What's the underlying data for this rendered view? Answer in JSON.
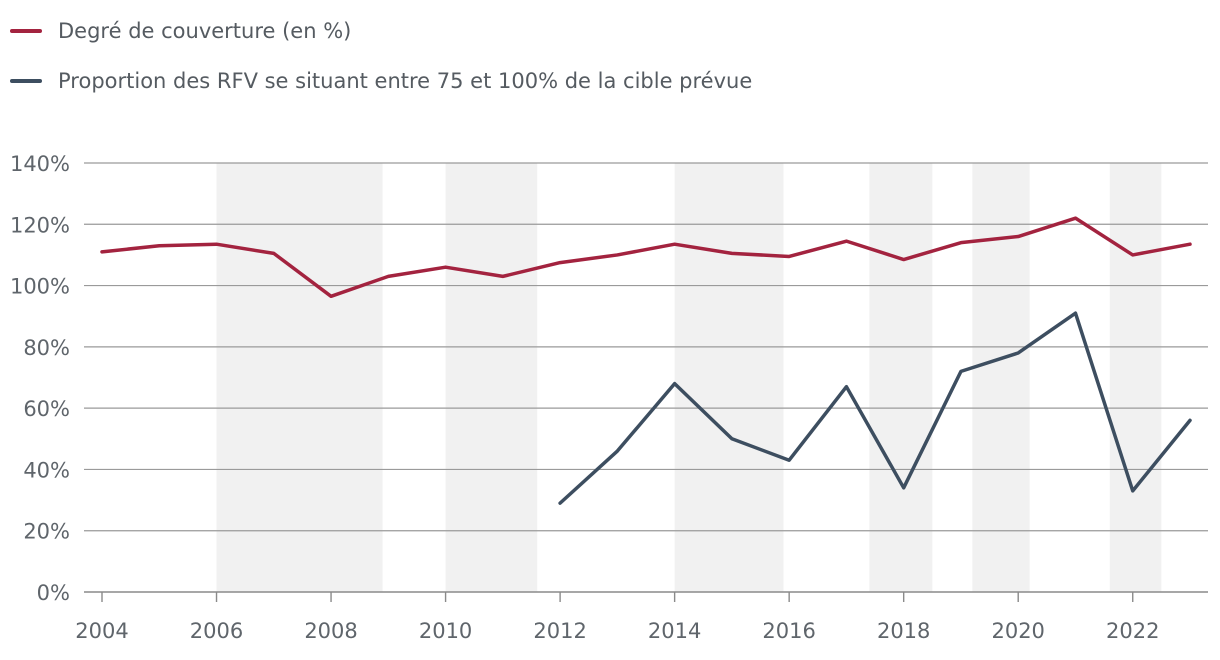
{
  "chart_data": {
    "type": "line",
    "title": "",
    "xlabel": "",
    "ylabel": "",
    "x": [
      2004,
      2005,
      2006,
      2007,
      2008,
      2009,
      2010,
      2011,
      2012,
      2013,
      2014,
      2015,
      2016,
      2017,
      2018,
      2019,
      2020,
      2021,
      2022,
      2023
    ],
    "xticks": [
      "2004",
      "2006",
      "2008",
      "2010",
      "2012",
      "2014",
      "2016",
      "2018",
      "2020",
      "2022"
    ],
    "xtick_values": [
      2004,
      2006,
      2008,
      2010,
      2012,
      2014,
      2016,
      2018,
      2020,
      2022
    ],
    "yticks": [
      "0%",
      "20%",
      "40%",
      "60%",
      "80%",
      "100%",
      "120%",
      "140%"
    ],
    "ytick_values": [
      0,
      20,
      40,
      60,
      80,
      100,
      120,
      140
    ],
    "xlim": [
      2004,
      2023
    ],
    "ylim": [
      0,
      140
    ],
    "grid": true,
    "legend_position": "top-left",
    "shaded_periods": [
      [
        2006,
        2008.9
      ],
      [
        2010,
        2011.6
      ],
      [
        2014,
        2015.9
      ],
      [
        2017.4,
        2018.5
      ],
      [
        2019.2,
        2020.2
      ],
      [
        2021.6,
        2022.5
      ]
    ],
    "series": [
      {
        "name": "Degré de couverture (en %)",
        "color": "#a3233f",
        "values": [
          111,
          113,
          113.5,
          110.5,
          96.5,
          103,
          106,
          103,
          107.5,
          110,
          113.5,
          110.5,
          109.5,
          114.5,
          108.5,
          114,
          116,
          122,
          110,
          113.5
        ]
      },
      {
        "name": "Proportion des RFV se situant entre 75 et 100% de la cible prévue",
        "color": "#3d4e60",
        "values": [
          null,
          null,
          null,
          null,
          null,
          null,
          null,
          null,
          29,
          46,
          68,
          50,
          43,
          67,
          34,
          72,
          78,
          91,
          33,
          56
        ]
      }
    ]
  }
}
